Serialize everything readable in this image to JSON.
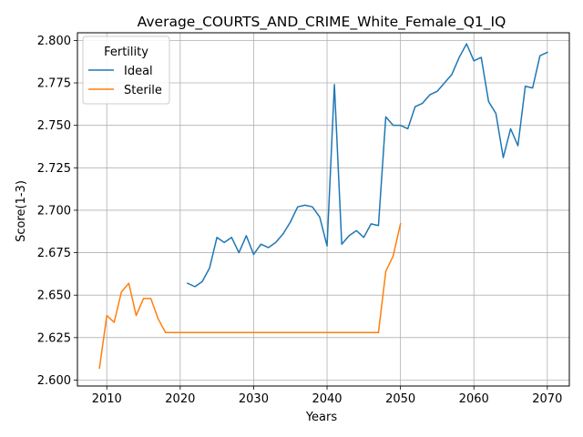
{
  "chart_data": {
    "type": "line",
    "title": "Average_COURTS_AND_CRIME_White_Female_Q1_IQ",
    "xlabel": "Years",
    "ylabel": "Score(1-3)",
    "xlim": [
      2006,
      2073
    ],
    "ylim": [
      2.5965,
      2.8045
    ],
    "xticks": [
      2010,
      2020,
      2030,
      2040,
      2050,
      2060,
      2070
    ],
    "yticks": [
      2.6,
      2.625,
      2.65,
      2.675,
      2.7,
      2.725,
      2.75,
      2.775,
      2.8
    ],
    "grid": true,
    "legend": {
      "title": "Fertility",
      "placement": "top-left"
    },
    "series": [
      {
        "name": "Ideal",
        "color": "#1f77b4",
        "x": [
          2021,
          2022,
          2023,
          2024,
          2025,
          2026,
          2027,
          2028,
          2029,
          2030,
          2031,
          2032,
          2033,
          2034,
          2035,
          2036,
          2037,
          2038,
          2039,
          2040,
          2041,
          2042,
          2043,
          2044,
          2045,
          2046,
          2047,
          2048,
          2049,
          2050,
          2051,
          2052,
          2053,
          2054,
          2055,
          2056,
          2057,
          2058,
          2059,
          2060,
          2061,
          2062,
          2063,
          2064,
          2065,
          2066,
          2067,
          2068,
          2069,
          2070
        ],
        "y": [
          2.657,
          2.655,
          2.658,
          2.666,
          2.684,
          2.681,
          2.684,
          2.675,
          2.685,
          2.674,
          2.68,
          2.678,
          2.681,
          2.686,
          2.693,
          2.702,
          2.703,
          2.702,
          2.696,
          2.679,
          2.774,
          2.68,
          2.685,
          2.688,
          2.684,
          2.692,
          2.691,
          2.755,
          2.75,
          2.75,
          2.748,
          2.761,
          2.763,
          2.768,
          2.77,
          2.775,
          2.78,
          2.79,
          2.798,
          2.788,
          2.79,
          2.764,
          2.757,
          2.731,
          2.748,
          2.738,
          2.773,
          2.772,
          2.791,
          2.793
        ]
      },
      {
        "name": "Sterile",
        "color": "#ff7f0e",
        "x": [
          2009,
          2010,
          2011,
          2012,
          2013,
          2014,
          2015,
          2016,
          2017,
          2018,
          2019,
          2020,
          2021,
          2022,
          2023,
          2024,
          2025,
          2026,
          2027,
          2028,
          2029,
          2030,
          2031,
          2032,
          2033,
          2034,
          2035,
          2036,
          2037,
          2038,
          2039,
          2040,
          2041,
          2042,
          2043,
          2044,
          2045,
          2046,
          2047,
          2048,
          2049,
          2050
        ],
        "y": [
          2.607,
          2.638,
          2.634,
          2.652,
          2.657,
          2.638,
          2.648,
          2.648,
          2.636,
          2.628,
          2.628,
          2.628,
          2.628,
          2.628,
          2.628,
          2.628,
          2.628,
          2.628,
          2.628,
          2.628,
          2.628,
          2.628,
          2.628,
          2.628,
          2.628,
          2.628,
          2.628,
          2.628,
          2.628,
          2.628,
          2.628,
          2.628,
          2.628,
          2.628,
          2.628,
          2.628,
          2.628,
          2.628,
          2.628,
          2.664,
          2.673,
          2.692
        ]
      }
    ]
  }
}
